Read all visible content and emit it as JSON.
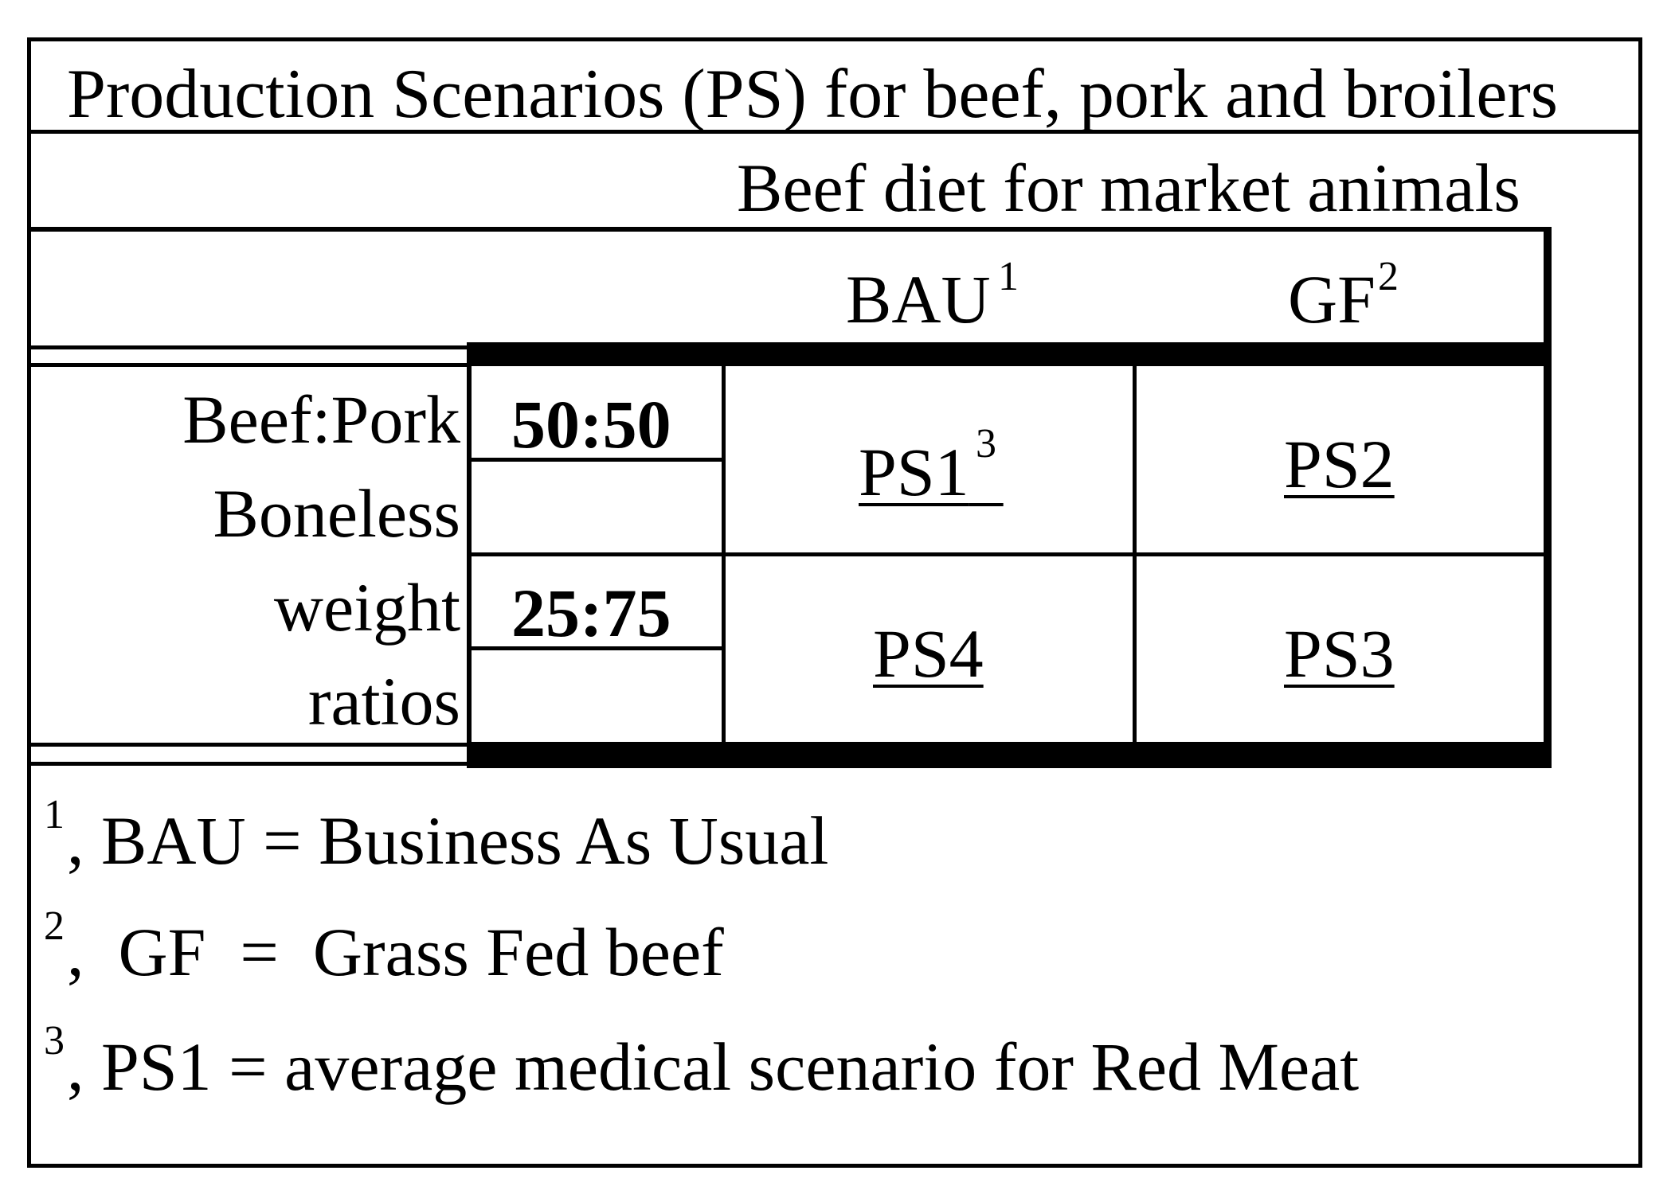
{
  "title": "Production Scenarios (PS) for beef, pork and broilers",
  "diet_header": "Beef diet for market animals",
  "columns": [
    {
      "label": "BAU",
      "note_ref": "1"
    },
    {
      "label": "GF",
      "note_ref": "2"
    }
  ],
  "row_label_lines": [
    "Beef:Pork",
    "Boneless",
    "weight",
    "ratios"
  ],
  "ratios": [
    {
      "label": "50:50",
      "cells": [
        {
          "label": "PS1",
          "note_ref": "3"
        },
        {
          "label": "PS2"
        }
      ]
    },
    {
      "label": "25:75",
      "cells": [
        {
          "label": "PS4"
        },
        {
          "label": "PS3"
        }
      ]
    }
  ],
  "footnotes": [
    {
      "ref": "1",
      "text": ", BAU = Business As Usual"
    },
    {
      "ref": "2",
      "text": ",  GF  =  Grass Fed beef"
    },
    {
      "ref": "3",
      "text": ", PS1 = average medical scenario for Red Meat"
    }
  ]
}
